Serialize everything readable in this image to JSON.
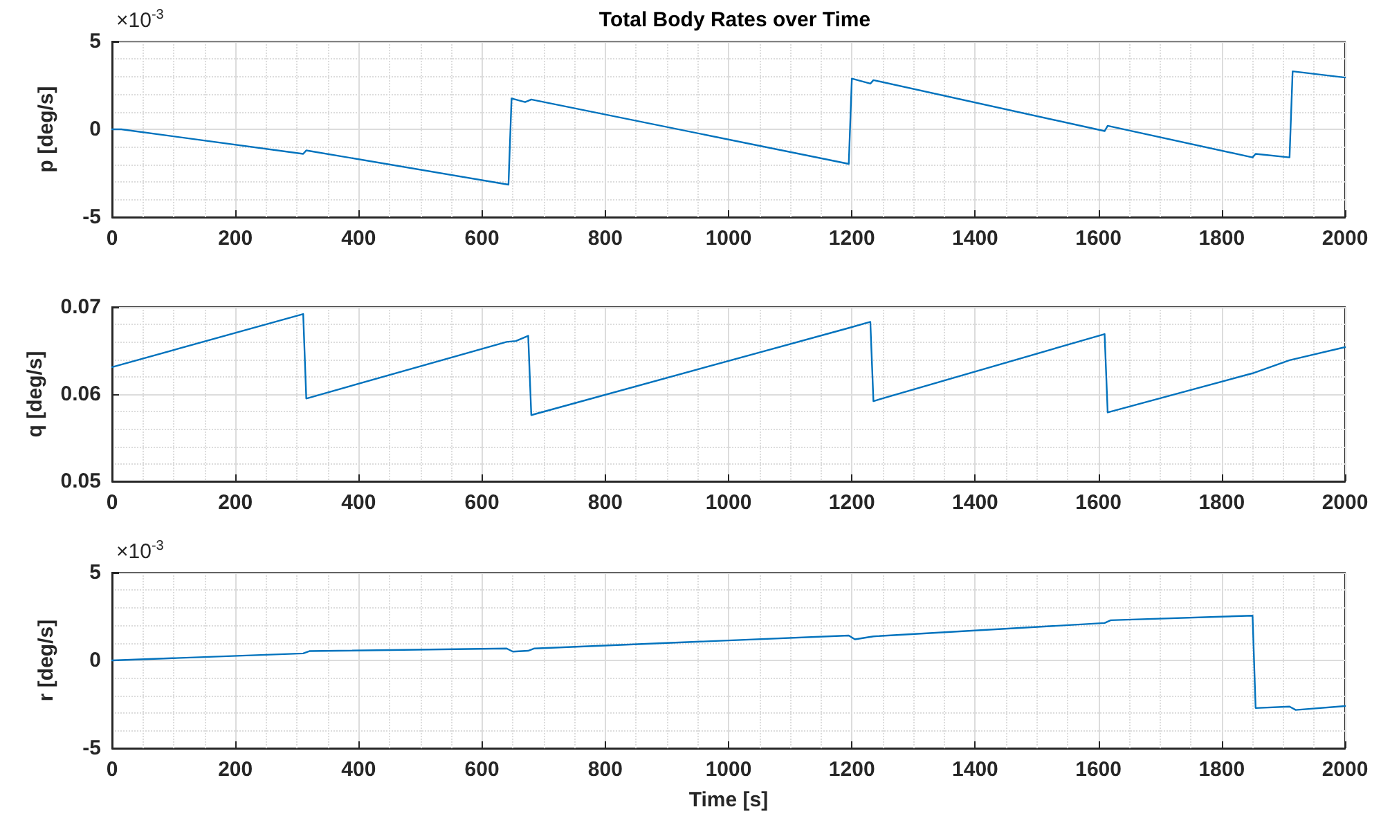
{
  "chart_data": [
    {
      "type": "line",
      "title": "Total Body Rates over Time",
      "ylabel": "p [deg/s]",
      "annotations": [
        "×10$^{-3}$"
      ],
      "x": [
        0,
        15,
        310,
        315,
        643,
        648,
        670,
        680,
        1195,
        1200,
        1230,
        1235,
        1610,
        1615,
        1850,
        1855,
        1910,
        1915,
        2000
      ],
      "series": [
        {
          "color": "#0072bd",
          "values": [
            0,
            0,
            -1.4,
            -1.2,
            -3.15,
            1.76,
            1.55,
            1.7,
            -1.97,
            2.89,
            2.6,
            2.8,
            -0.1,
            0.2,
            -1.6,
            -1.4,
            -1.6,
            3.3,
            2.95
          ]
        }
      ],
      "xlim": [
        0,
        2000
      ],
      "xticks": [
        0,
        200,
        400,
        600,
        800,
        1000,
        1200,
        1400,
        1600,
        1800,
        2000
      ],
      "ylim": [
        -5,
        5
      ],
      "yticks": [
        -5,
        0,
        5
      ],
      "grid": true,
      "marker": "none",
      "line_style": "solid"
    },
    {
      "type": "line",
      "ylabel": "q [deg/s]",
      "x": [
        0,
        310,
        315,
        640,
        655,
        675,
        680,
        1195,
        1230,
        1235,
        1610,
        1615,
        1850,
        1910,
        2000
      ],
      "series": [
        {
          "color": "#0072bd",
          "values": [
            0.0631,
            0.0692,
            0.0595,
            0.066,
            0.0661,
            0.0667,
            0.0576,
            0.0676,
            0.0683,
            0.0592,
            0.0669,
            0.0579,
            0.0624,
            0.0639,
            0.0654
          ]
        }
      ],
      "xlim": [
        0,
        2000
      ],
      "xticks": [
        0,
        200,
        400,
        600,
        800,
        1000,
        1200,
        1400,
        1600,
        1800,
        2000
      ],
      "ylim": [
        0.05,
        0.07
      ],
      "yticks": [
        0.05,
        0.06,
        0.07
      ],
      "grid": true,
      "marker": "none",
      "line_style": "solid"
    },
    {
      "type": "line",
      "xlabel": "Time [s]",
      "ylabel": "r [deg/s]",
      "annotations": [
        "×10$^{-3}$"
      ],
      "x": [
        0,
        310,
        320,
        640,
        650,
        675,
        685,
        1195,
        1205,
        1235,
        1610,
        1620,
        1850,
        1855,
        1910,
        1920,
        2000
      ],
      "series": [
        {
          "color": "#0072bd",
          "values": [
            0,
            0.4,
            0.53,
            0.68,
            0.5,
            0.55,
            0.68,
            1.42,
            1.2,
            1.37,
            2.13,
            2.29,
            2.55,
            -2.71,
            -2.63,
            -2.82,
            -2.6
          ]
        }
      ],
      "xlim": [
        0,
        2000
      ],
      "xticks": [
        0,
        200,
        400,
        600,
        800,
        1000,
        1200,
        1400,
        1600,
        1800,
        2000
      ],
      "ylim": [
        -5,
        5
      ],
      "yticks": [
        -5,
        0,
        5
      ],
      "grid": true,
      "marker": "none",
      "line_style": "solid"
    }
  ]
}
